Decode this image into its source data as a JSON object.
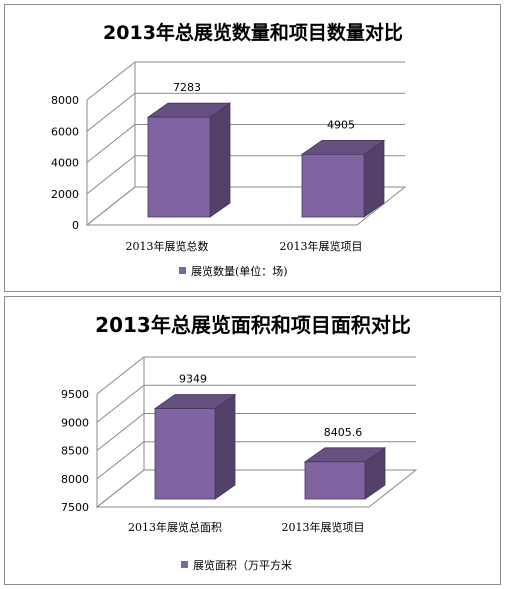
{
  "chart_data": [
    {
      "type": "bar",
      "title": "2013年总展览数量和项目数量对比",
      "categories": [
        "2013年展览总数",
        "2013年展览项目"
      ],
      "series": [
        {
          "name": "展览数量(单位：场)",
          "values": [
            7283,
            4905
          ]
        }
      ],
      "data_labels": [
        "7283",
        "4905"
      ],
      "yticks": [
        "0",
        "2000",
        "4000",
        "6000",
        "8000"
      ],
      "ylim": [
        0,
        8000
      ],
      "grid": true,
      "style": "3d",
      "legend": "bottom",
      "color": "#8064a2"
    },
    {
      "type": "bar",
      "title": "2013年总展览面积和项目面积对比",
      "categories": [
        "2013年展览总面积",
        "2013年展览项目"
      ],
      "series": [
        {
          "name": "展览面积（万平方米",
          "values": [
            9349,
            8405.6
          ]
        }
      ],
      "data_labels": [
        "9349",
        "8405.6"
      ],
      "yticks": [
        "7500",
        "8000",
        "8500",
        "9000",
        "9500"
      ],
      "ylim": [
        7500,
        9500
      ],
      "grid": true,
      "style": "3d",
      "legend": "bottom",
      "color": "#8064a2"
    }
  ]
}
